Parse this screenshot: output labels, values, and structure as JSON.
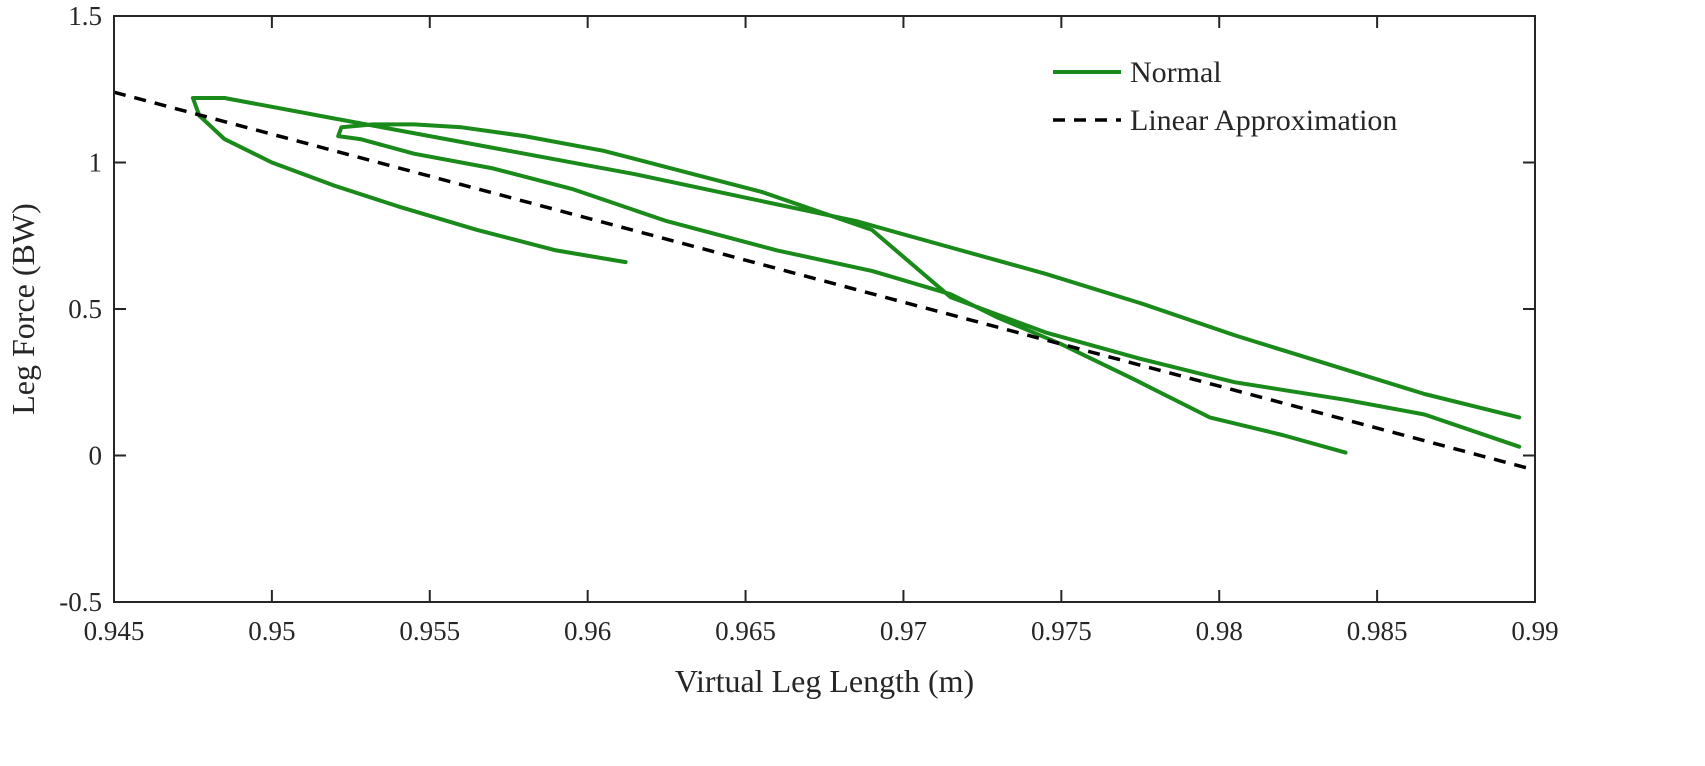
{
  "chart_data": {
    "type": "line",
    "title": "",
    "xlabel": "Virtual Leg Length (m)",
    "ylabel": "Leg Force (BW)",
    "xlim": [
      0.945,
      0.99
    ],
    "ylim": [
      -0.5,
      1.5
    ],
    "xticks": [
      0.945,
      0.95,
      0.955,
      0.96,
      0.965,
      0.97,
      0.975,
      0.98,
      0.985,
      0.99
    ],
    "xtick_labels": [
      "0.945",
      "0.95",
      "0.955",
      "0.96",
      "0.965",
      "0.97",
      "0.975",
      "0.98",
      "0.985",
      "0.99"
    ],
    "yticks": [
      -0.5,
      0,
      0.5,
      1,
      1.5
    ],
    "ytick_labels": [
      "-0.5",
      "0",
      "0.5",
      "1",
      "1.5"
    ],
    "grid": false,
    "legend_position": "top-right",
    "series": [
      {
        "name": "Normal",
        "color": "#1a8a1a",
        "style": "solid",
        "x": [
          0.9612,
          0.959,
          0.9565,
          0.954,
          0.952,
          0.95,
          0.9485,
          0.9477,
          0.9475,
          0.9485,
          0.95,
          0.952,
          0.955,
          0.958,
          0.9615,
          0.965,
          0.9685,
          0.9715,
          0.9745,
          0.9775,
          0.9805,
          0.9835,
          0.9865,
          0.9895
        ],
        "y": [
          0.66,
          0.7,
          0.77,
          0.85,
          0.92,
          1.0,
          1.08,
          1.16,
          1.22,
          1.22,
          1.19,
          1.15,
          1.09,
          1.03,
          0.96,
          0.88,
          0.8,
          0.71,
          0.62,
          0.52,
          0.41,
          0.31,
          0.21,
          0.13
        ]
      },
      {
        "name": "",
        "color": "#1a8a1a",
        "style": "solid",
        "x": [
          0.984,
          0.982,
          0.9797,
          0.9773,
          0.975,
          0.973,
          0.9715,
          0.969,
          0.966,
          0.9625,
          0.9595,
          0.957,
          0.9545,
          0.9528,
          0.9521,
          0.9522,
          0.9532,
          0.9545,
          0.956,
          0.958,
          0.9605,
          0.963,
          0.9655,
          0.969,
          0.9715,
          0.9745,
          0.9775,
          0.9805,
          0.984,
          0.9865,
          0.9895
        ],
        "y": [
          0.01,
          0.07,
          0.13,
          0.26,
          0.38,
          0.47,
          0.55,
          0.63,
          0.7,
          0.8,
          0.91,
          0.98,
          1.03,
          1.08,
          1.09,
          1.12,
          1.13,
          1.13,
          1.12,
          1.09,
          1.04,
          0.97,
          0.9,
          0.77,
          0.54,
          0.42,
          0.33,
          0.25,
          0.19,
          0.14,
          0.03
        ]
      },
      {
        "name": "Linear Approximation",
        "color": "#000000",
        "style": "dashed",
        "x": [
          0.945,
          0.99
        ],
        "y": [
          1.24,
          -0.05
        ]
      }
    ]
  },
  "legend": {
    "items": [
      {
        "label": "Normal",
        "color": "#1a8a1a",
        "style": "solid"
      },
      {
        "label": "Linear Approximation",
        "color": "#000000",
        "style": "dashed"
      }
    ]
  }
}
